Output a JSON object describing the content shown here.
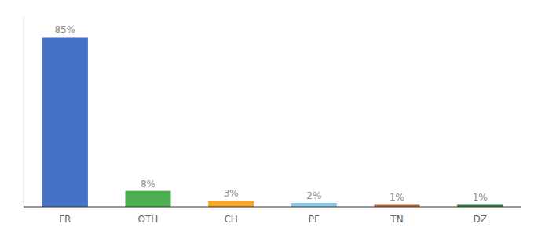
{
  "chart_data": {
    "type": "bar",
    "categories": [
      "FR",
      "OTH",
      "CH",
      "PF",
      "TN",
      "DZ"
    ],
    "values": [
      85,
      8,
      3,
      2,
      1,
      1
    ],
    "value_labels": [
      "85%",
      "8%",
      "3%",
      "2%",
      "1%",
      "1%"
    ],
    "colors": [
      "#4472c4",
      "#4caf50",
      "#f5a623",
      "#87ceeb",
      "#c0632b",
      "#2e7d32"
    ],
    "ylim": [
      0,
      95
    ],
    "data_labels": true,
    "tick_labels": "x"
  }
}
